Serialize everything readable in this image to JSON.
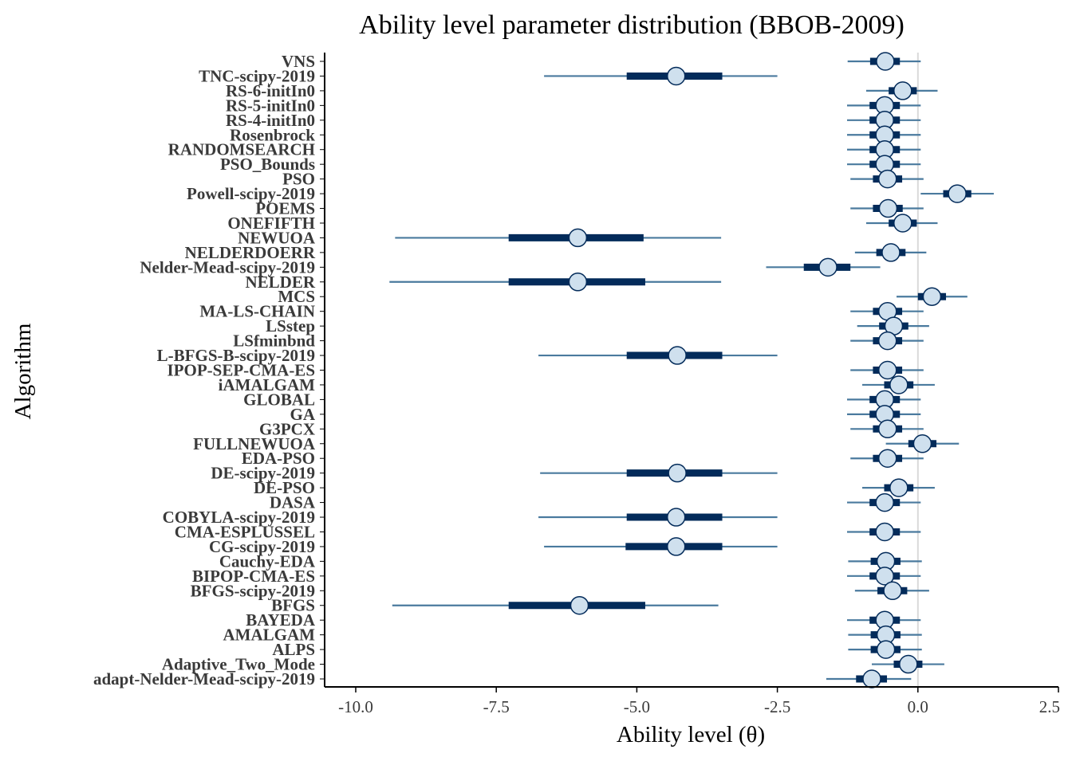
{
  "chart_data": {
    "type": "forest",
    "title": "Ability level parameter distribution (BBOB-2009)",
    "xlabel": "Ability level (θ)",
    "ylabel": "Algorithm",
    "xlim": [
      -10.0,
      2.5
    ],
    "xticks": [
      -10.0,
      -7.5,
      -5.0,
      -2.5,
      0.0,
      2.5
    ],
    "xtick_labels": [
      "-10.0",
      "-7.5",
      "-5.0",
      "-2.5",
      "0.0",
      "2.5"
    ],
    "reference_line_x": 0.0,
    "colors": {
      "outer_interval": "#4a7a9e",
      "inner_interval": "#032b5a",
      "point_fill": "#cfe0ee",
      "point_stroke": "#032b5a",
      "reference_line": "#d9d9d9",
      "axis": "#000000"
    },
    "rows": [
      {
        "label": "VNS",
        "mean": -0.58,
        "inner": [
          -0.85,
          -0.32
        ],
        "outer": [
          -1.25,
          0.05
        ]
      },
      {
        "label": "TNC-scipy-2019",
        "mean": -4.3,
        "inner": [
          -5.18,
          -3.48
        ],
        "outer": [
          -6.65,
          -2.5
        ]
      },
      {
        "label": "RS-6-initIn0",
        "mean": -0.27,
        "inner": [
          -0.52,
          -0.02
        ],
        "outer": [
          -0.92,
          0.35
        ]
      },
      {
        "label": "RS-5-initIn0",
        "mean": -0.59,
        "inner": [
          -0.86,
          -0.32
        ],
        "outer": [
          -1.26,
          0.05
        ]
      },
      {
        "label": "RS-4-initIn0",
        "mean": -0.59,
        "inner": [
          -0.86,
          -0.32
        ],
        "outer": [
          -1.26,
          0.05
        ]
      },
      {
        "label": "Rosenbrock",
        "mean": -0.59,
        "inner": [
          -0.86,
          -0.32
        ],
        "outer": [
          -1.26,
          0.05
        ]
      },
      {
        "label": "RANDOMSEARCH",
        "mean": -0.59,
        "inner": [
          -0.86,
          -0.32
        ],
        "outer": [
          -1.26,
          0.05
        ]
      },
      {
        "label": "PSO_Bounds",
        "mean": -0.59,
        "inner": [
          -0.86,
          -0.32
        ],
        "outer": [
          -1.26,
          0.05
        ]
      },
      {
        "label": "PSO",
        "mean": -0.54,
        "inner": [
          -0.8,
          -0.28
        ],
        "outer": [
          -1.2,
          0.1
        ]
      },
      {
        "label": "Powell-scipy-2019",
        "mean": 0.7,
        "inner": [
          0.45,
          0.95
        ],
        "outer": [
          0.05,
          1.35
        ]
      },
      {
        "label": "POEMS",
        "mean": -0.53,
        "inner": [
          -0.8,
          -0.27
        ],
        "outer": [
          -1.2,
          0.1
        ]
      },
      {
        "label": "ONEFIFTH",
        "mean": -0.27,
        "inner": [
          -0.52,
          -0.02
        ],
        "outer": [
          -0.92,
          0.35
        ]
      },
      {
        "label": "NEWUOA",
        "mean": -6.05,
        "inner": [
          -7.28,
          -4.88
        ],
        "outer": [
          -9.3,
          -3.5
        ]
      },
      {
        "label": "NELDERDOERR",
        "mean": -0.48,
        "inner": [
          -0.74,
          -0.22
        ],
        "outer": [
          -1.12,
          0.15
        ]
      },
      {
        "label": "Nelder-Mead-scipy-2019",
        "mean": -1.6,
        "inner": [
          -2.03,
          -1.2
        ],
        "outer": [
          -2.7,
          -0.67
        ]
      },
      {
        "label": "NELDER",
        "mean": -6.05,
        "inner": [
          -7.28,
          -4.85
        ],
        "outer": [
          -9.4,
          -3.5
        ]
      },
      {
        "label": "MCS",
        "mean": 0.25,
        "inner": [
          0.0,
          0.5
        ],
        "outer": [
          -0.38,
          0.88
        ]
      },
      {
        "label": "MA-LS-CHAIN",
        "mean": -0.54,
        "inner": [
          -0.8,
          -0.28
        ],
        "outer": [
          -1.2,
          0.1
        ]
      },
      {
        "label": "LSstep",
        "mean": -0.43,
        "inner": [
          -0.69,
          -0.17
        ],
        "outer": [
          -1.08,
          0.2
        ]
      },
      {
        "label": "LSfminbnd",
        "mean": -0.54,
        "inner": [
          -0.8,
          -0.28
        ],
        "outer": [
          -1.2,
          0.1
        ]
      },
      {
        "label": "L-BFGS-B-scipy-2019",
        "mean": -4.28,
        "inner": [
          -5.18,
          -3.48
        ],
        "outer": [
          -6.75,
          -2.5
        ]
      },
      {
        "label": "IPOP-SEP-CMA-ES",
        "mean": -0.54,
        "inner": [
          -0.8,
          -0.28
        ],
        "outer": [
          -1.2,
          0.1
        ]
      },
      {
        "label": "iAMALGAM",
        "mean": -0.34,
        "inner": [
          -0.6,
          -0.08
        ],
        "outer": [
          -0.99,
          0.3
        ]
      },
      {
        "label": "GLOBAL",
        "mean": -0.59,
        "inner": [
          -0.86,
          -0.32
        ],
        "outer": [
          -1.26,
          0.05
        ]
      },
      {
        "label": "GA",
        "mean": -0.59,
        "inner": [
          -0.86,
          -0.32
        ],
        "outer": [
          -1.26,
          0.05
        ]
      },
      {
        "label": "G3PCX",
        "mean": -0.54,
        "inner": [
          -0.8,
          -0.28
        ],
        "outer": [
          -1.2,
          0.1
        ]
      },
      {
        "label": "FULLNEWUOA",
        "mean": 0.08,
        "inner": [
          -0.17,
          0.33
        ],
        "outer": [
          -0.57,
          0.73
        ]
      },
      {
        "label": "EDA-PSO",
        "mean": -0.54,
        "inner": [
          -0.8,
          -0.28
        ],
        "outer": [
          -1.2,
          0.1
        ]
      },
      {
        "label": "DE-scipy-2019",
        "mean": -4.28,
        "inner": [
          -5.18,
          -3.48
        ],
        "outer": [
          -6.72,
          -2.5
        ]
      },
      {
        "label": "DE-PSO",
        "mean": -0.34,
        "inner": [
          -0.6,
          -0.08
        ],
        "outer": [
          -0.99,
          0.3
        ]
      },
      {
        "label": "DASA",
        "mean": -0.59,
        "inner": [
          -0.86,
          -0.32
        ],
        "outer": [
          -1.26,
          0.05
        ]
      },
      {
        "label": "COBYLA-scipy-2019",
        "mean": -4.3,
        "inner": [
          -5.18,
          -3.48
        ],
        "outer": [
          -6.75,
          -2.5
        ]
      },
      {
        "label": "CMA-ESPLUSSEL",
        "mean": -0.59,
        "inner": [
          -0.86,
          -0.32
        ],
        "outer": [
          -1.26,
          0.05
        ]
      },
      {
        "label": "CG-scipy-2019",
        "mean": -4.3,
        "inner": [
          -5.2,
          -3.48
        ],
        "outer": [
          -6.65,
          -2.5
        ]
      },
      {
        "label": "Cauchy-EDA",
        "mean": -0.57,
        "inner": [
          -0.84,
          -0.31
        ],
        "outer": [
          -1.24,
          0.07
        ]
      },
      {
        "label": "BIPOP-CMA-ES",
        "mean": -0.59,
        "inner": [
          -0.86,
          -0.32
        ],
        "outer": [
          -1.26,
          0.05
        ]
      },
      {
        "label": "BFGS-scipy-2019",
        "mean": -0.45,
        "inner": [
          -0.72,
          -0.19
        ],
        "outer": [
          -1.12,
          0.2
        ]
      },
      {
        "label": "BFGS",
        "mean": -6.02,
        "inner": [
          -7.28,
          -4.85
        ],
        "outer": [
          -9.35,
          -3.55
        ]
      },
      {
        "label": "BAYEDA",
        "mean": -0.59,
        "inner": [
          -0.86,
          -0.32
        ],
        "outer": [
          -1.26,
          0.05
        ]
      },
      {
        "label": "AMALGAM",
        "mean": -0.57,
        "inner": [
          -0.84,
          -0.31
        ],
        "outer": [
          -1.24,
          0.07
        ]
      },
      {
        "label": "ALPS",
        "mean": -0.57,
        "inner": [
          -0.84,
          -0.31
        ],
        "outer": [
          -1.24,
          0.07
        ]
      },
      {
        "label": "Adaptive_Two_Mode",
        "mean": -0.17,
        "inner": [
          -0.43,
          0.08
        ],
        "outer": [
          -0.82,
          0.47
        ]
      },
      {
        "label": "adapt-Nelder-Mead-scipy-2019",
        "mean": -0.82,
        "inner": [
          -1.1,
          -0.55
        ],
        "outer": [
          -1.63,
          -0.12
        ]
      }
    ]
  }
}
